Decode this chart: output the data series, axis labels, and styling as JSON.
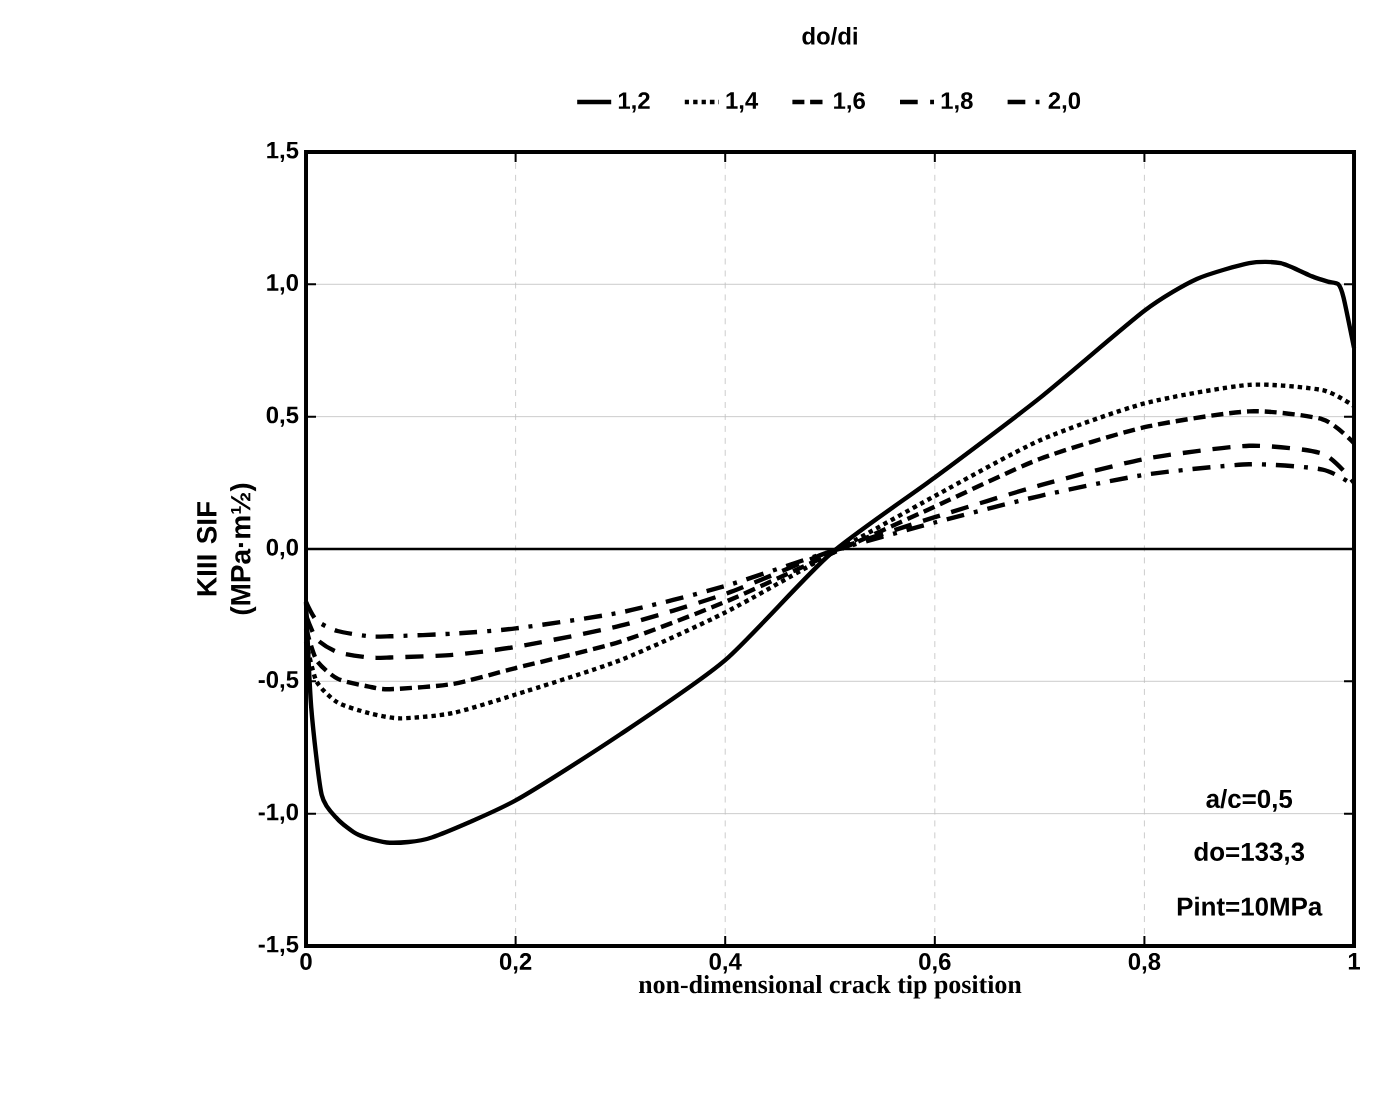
{
  "chart_data": {
    "type": "line",
    "xlabel": "non-dimensional crack tip position",
    "ylabel": "KIII SIF (MPa·m½)",
    "legend_title": "do/di",
    "legend": "top",
    "grid": true,
    "xlim": [
      0,
      1
    ],
    "ylim": [
      -1.5,
      1.5
    ],
    "xticks": [
      0,
      {
        "value": 0.2,
        "label": "0,2"
      },
      {
        "value": 0.4,
        "label": "0,4"
      },
      {
        "value": 0.6,
        "label": "0,6"
      },
      {
        "value": 0.8,
        "label": "0,8"
      },
      1
    ],
    "yticks": [
      {
        "value": -1.5,
        "label": "-1,5"
      },
      {
        "value": -1.0,
        "label": "-1,0"
      },
      {
        "value": -0.5,
        "label": "-0,5"
      },
      {
        "value": 0,
        "label": "0,0"
      },
      {
        "value": 0.5,
        "label": "0,5"
      },
      {
        "value": 1.0,
        "label": "1,0"
      },
      {
        "value": 1.5,
        "label": "1,5"
      }
    ],
    "annotations": [
      "a/c=0,5",
      "do=133,3",
      "Pint=10MPa"
    ],
    "series": [
      {
        "name": "1,2",
        "color": "#000000",
        "line_style": "solid",
        "x": [
          0,
          0.005,
          0.015,
          0.03,
          0.05,
          0.08,
          0.12,
          0.2,
          0.3,
          0.4,
          0.5,
          0.6,
          0.7,
          0.8,
          0.85,
          0.9,
          0.93,
          0.96,
          0.975,
          0.985,
          0.99,
          1.0
        ],
        "values": [
          -0.2,
          -0.6,
          -0.93,
          -1.02,
          -1.08,
          -1.11,
          -1.09,
          -0.95,
          -0.7,
          -0.42,
          -0.02,
          0.27,
          0.57,
          0.9,
          1.02,
          1.08,
          1.08,
          1.03,
          1.01,
          1.0,
          0.95,
          0.76
        ]
      },
      {
        "name": "1,4",
        "color": "#000000",
        "line_style": "dotted",
        "x": [
          0,
          0.01,
          0.03,
          0.06,
          0.09,
          0.14,
          0.2,
          0.3,
          0.4,
          0.5,
          0.6,
          0.7,
          0.8,
          0.9,
          0.97,
          1.0
        ],
        "values": [
          -0.35,
          -0.5,
          -0.58,
          -0.62,
          -0.64,
          -0.62,
          -0.55,
          -0.42,
          -0.24,
          -0.02,
          0.2,
          0.41,
          0.55,
          0.62,
          0.6,
          0.54
        ]
      },
      {
        "name": "1,6",
        "color": "#000000",
        "line_style": "dashed",
        "x": [
          0,
          0.01,
          0.03,
          0.06,
          0.08,
          0.14,
          0.2,
          0.3,
          0.4,
          0.5,
          0.6,
          0.7,
          0.8,
          0.9,
          0.97,
          1.0
        ],
        "values": [
          -0.3,
          -0.42,
          -0.49,
          -0.52,
          -0.53,
          -0.51,
          -0.45,
          -0.35,
          -0.2,
          -0.02,
          0.16,
          0.34,
          0.46,
          0.52,
          0.49,
          0.4
        ]
      },
      {
        "name": "1,8",
        "color": "#000000",
        "line_style": "loosely dashed",
        "x": [
          0,
          0.01,
          0.03,
          0.06,
          0.08,
          0.14,
          0.2,
          0.3,
          0.4,
          0.5,
          0.6,
          0.7,
          0.8,
          0.9,
          0.97,
          1.0
        ],
        "values": [
          -0.25,
          -0.34,
          -0.39,
          -0.41,
          -0.41,
          -0.4,
          -0.37,
          -0.29,
          -0.17,
          -0.01,
          0.12,
          0.24,
          0.34,
          0.39,
          0.36,
          0.25
        ]
      },
      {
        "name": "2,0",
        "color": "#000000",
        "line_style": "dashdotted",
        "x": [
          0,
          0.01,
          0.03,
          0.06,
          0.08,
          0.14,
          0.2,
          0.3,
          0.4,
          0.5,
          0.6,
          0.7,
          0.8,
          0.9,
          0.97,
          1.0
        ],
        "values": [
          -0.2,
          -0.27,
          -0.31,
          -0.33,
          -0.33,
          -0.32,
          -0.3,
          -0.24,
          -0.14,
          -0.01,
          0.1,
          0.2,
          0.28,
          0.32,
          0.3,
          0.24
        ]
      }
    ]
  }
}
